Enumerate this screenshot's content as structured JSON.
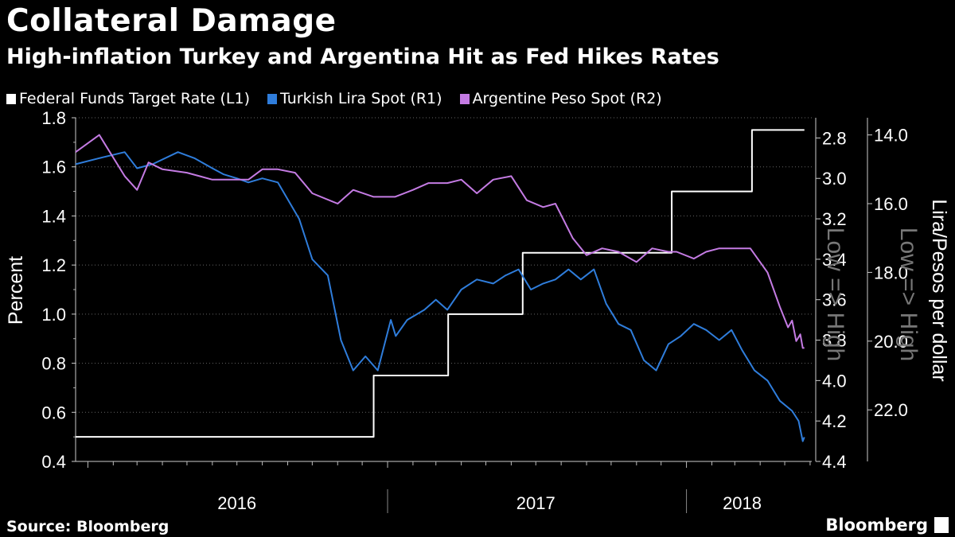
{
  "header": {
    "title": "Collateral Damage",
    "subtitle": "High-inflation Turkey and Argentina Hit as Fed Hikes Rates"
  },
  "footer": {
    "source": "Source: Bloomberg",
    "brand": "Bloomberg"
  },
  "chart_data": {
    "type": "line",
    "legend_position": "top-left",
    "grid": true,
    "x_axis": {
      "labels": [
        "2016",
        "2017",
        "2018"
      ]
    },
    "y_axes": {
      "L1": {
        "label": "Percent",
        "range": [
          0.4,
          1.8
        ],
        "ticks": [
          "1.8",
          "1.6",
          "1.4",
          "1.2",
          "1.0",
          "0.8",
          "0.6",
          "0.4"
        ]
      },
      "R1": {
        "label": "Low => High",
        "range": [
          2.7,
          4.4
        ],
        "inverted": true,
        "ticks": [
          "2.8",
          "3.0",
          "3.2",
          "3.4",
          "3.6",
          "3.8",
          "4.0",
          "4.2",
          "4.4"
        ]
      },
      "R2": {
        "label": "Lira/Pesos per dollar",
        "label2": "Low => High",
        "range": [
          13.5,
          23.5
        ],
        "inverted": true,
        "ticks": [
          "14.0",
          "16.0",
          "18.0",
          "20.0",
          "22.0"
        ]
      }
    },
    "series": [
      {
        "name": "Federal Funds Target Rate (L1)",
        "axis": "L1",
        "color": "#ffffff",
        "step": true,
        "x": [
          "2015-12-17",
          "2016-12-15",
          "2017-03-16",
          "2017-06-15",
          "2017-12-14",
          "2018-03-22",
          "2018-05-25"
        ],
        "y": [
          0.5,
          0.75,
          1.0,
          1.25,
          1.5,
          1.75,
          1.75
        ]
      },
      {
        "name": "Turkish Lira Spot (R1)",
        "axis": "R1",
        "color": "#2f7ddb",
        "x": [
          "2015-12-17",
          "2016-01-15",
          "2016-02-15",
          "2016-03-01",
          "2016-03-20",
          "2016-04-20",
          "2016-05-10",
          "2016-06-01",
          "2016-06-15",
          "2016-07-01",
          "2016-07-15",
          "2016-08-01",
          "2016-08-20",
          "2016-09-15",
          "2016-10-01",
          "2016-10-20",
          "2016-11-05",
          "2016-11-20",
          "2016-12-05",
          "2016-12-20",
          "2017-01-05",
          "2017-01-11",
          "2017-01-25",
          "2017-02-15",
          "2017-03-01",
          "2017-03-15",
          "2017-04-01",
          "2017-04-20",
          "2017-05-10",
          "2017-05-25",
          "2017-06-10",
          "2017-06-25",
          "2017-07-10",
          "2017-07-25",
          "2017-08-10",
          "2017-08-25",
          "2017-09-10",
          "2017-09-25",
          "2017-10-10",
          "2017-10-25",
          "2017-11-10",
          "2017-11-25",
          "2017-12-10",
          "2017-12-25",
          "2018-01-10",
          "2018-01-25",
          "2018-02-10",
          "2018-02-25",
          "2018-03-10",
          "2018-03-25",
          "2018-04-10",
          "2018-04-25",
          "2018-05-10",
          "2018-05-18",
          "2018-05-23",
          "2018-05-25"
        ],
        "y": [
          2.93,
          2.9,
          2.87,
          2.95,
          2.93,
          2.87,
          2.9,
          2.95,
          2.98,
          3.0,
          3.02,
          3.0,
          3.02,
          3.2,
          3.4,
          3.48,
          3.8,
          3.95,
          3.88,
          3.95,
          3.7,
          3.78,
          3.7,
          3.65,
          3.6,
          3.65,
          3.55,
          3.5,
          3.52,
          3.48,
          3.45,
          3.55,
          3.52,
          3.5,
          3.45,
          3.5,
          3.45,
          3.62,
          3.72,
          3.75,
          3.9,
          3.95,
          3.82,
          3.78,
          3.72,
          3.75,
          3.8,
          3.75,
          3.85,
          3.95,
          4.0,
          4.1,
          4.15,
          4.2,
          4.3,
          4.28
        ]
      },
      {
        "name": "Argentine Peso Spot (R2)",
        "axis": "R2",
        "color": "#c47be3",
        "x": [
          "2015-12-17",
          "2016-01-15",
          "2016-01-20",
          "2016-02-15",
          "2016-03-01",
          "2016-03-15",
          "2016-04-01",
          "2016-05-01",
          "2016-06-01",
          "2016-06-20",
          "2016-07-15",
          "2016-08-01",
          "2016-08-20",
          "2016-09-10",
          "2016-10-01",
          "2016-11-01",
          "2016-11-20",
          "2016-12-15",
          "2017-01-10",
          "2017-02-01",
          "2017-02-20",
          "2017-03-15",
          "2017-04-01",
          "2017-04-20",
          "2017-05-10",
          "2017-06-01",
          "2017-06-20",
          "2017-07-10",
          "2017-07-25",
          "2017-08-15",
          "2017-09-01",
          "2017-09-20",
          "2017-10-10",
          "2017-11-01",
          "2017-11-20",
          "2017-12-10",
          "2017-12-20",
          "2018-01-10",
          "2018-01-25",
          "2018-02-10",
          "2018-03-01",
          "2018-03-20",
          "2018-04-10",
          "2018-04-25",
          "2018-05-05",
          "2018-05-10",
          "2018-05-15",
          "2018-05-20",
          "2018-05-23",
          "2018-05-25"
        ],
        "y": [
          14.5,
          14.0,
          14.2,
          15.2,
          15.6,
          14.8,
          15.0,
          15.1,
          15.3,
          15.3,
          15.3,
          15.0,
          15.0,
          15.1,
          15.7,
          16.0,
          15.6,
          15.8,
          15.8,
          15.6,
          15.4,
          15.4,
          15.3,
          15.7,
          15.3,
          15.2,
          15.9,
          16.1,
          16.0,
          17.0,
          17.5,
          17.3,
          17.4,
          17.7,
          17.3,
          17.4,
          17.4,
          17.6,
          17.4,
          17.3,
          17.3,
          17.3,
          18.0,
          19.0,
          19.6,
          19.4,
          20.0,
          19.8,
          20.2,
          20.2
        ]
      }
    ]
  }
}
